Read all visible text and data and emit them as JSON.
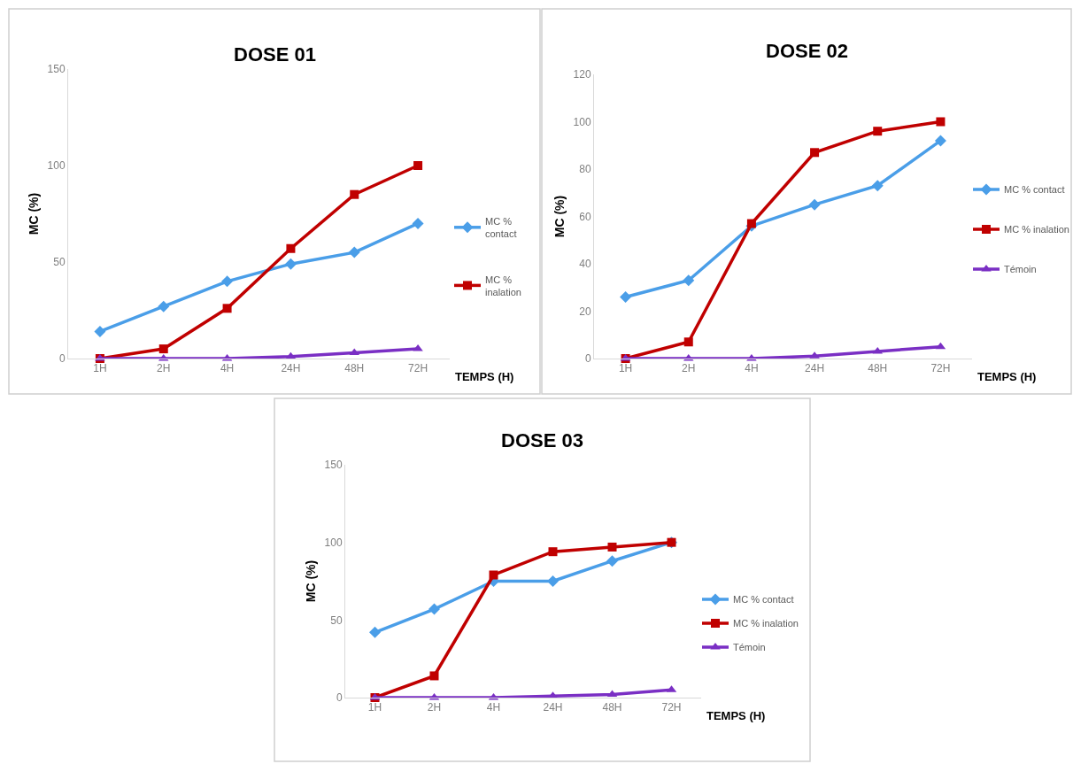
{
  "chart_data": [
    {
      "type": "line",
      "title": "DOSE 01",
      "xlabel": "TEMPS (H)",
      "ylabel": "MC (%)",
      "categories": [
        "1H",
        "2H",
        "4H",
        "24H",
        "48H",
        "72H"
      ],
      "series": [
        {
          "name": "MC % contact",
          "color": "#4a9ee8",
          "marker": "diamond",
          "values": [
            14,
            27,
            40,
            49,
            55,
            70
          ]
        },
        {
          "name": "MC % inalation",
          "color": "#c00000",
          "marker": "square",
          "values": [
            0,
            5,
            26,
            57,
            85,
            100
          ]
        },
        {
          "color": "#7a2fc4",
          "marker": "triangle",
          "values": [
            0,
            0,
            0,
            1,
            3,
            5
          ]
        }
      ],
      "ylim": [
        0,
        150
      ],
      "yticks": [
        0,
        50,
        100,
        150
      ],
      "legend": "right"
    },
    {
      "type": "line",
      "title": "DOSE 02",
      "xlabel": "TEMPS (H)",
      "ylabel": "MC (%)",
      "categories": [
        "1H",
        "2H",
        "4H",
        "24H",
        "48H",
        "72H"
      ],
      "series": [
        {
          "name": "MC % contact",
          "color": "#4a9ee8",
          "marker": "diamond",
          "values": [
            26,
            33,
            56,
            65,
            73,
            92
          ]
        },
        {
          "name": "MC % inalation",
          "color": "#c00000",
          "marker": "square",
          "values": [
            0,
            7,
            57,
            87,
            96,
            100
          ]
        },
        {
          "name": "Témoin",
          "color": "#7a2fc4",
          "marker": "triangle",
          "values": [
            0,
            0,
            0,
            1,
            3,
            5
          ]
        }
      ],
      "ylim": [
        0,
        120
      ],
      "yticks": [
        0,
        20,
        40,
        60,
        80,
        100,
        120
      ],
      "legend": "right"
    },
    {
      "type": "line",
      "title": "DOSE 03",
      "xlabel": "TEMPS (H)",
      "ylabel": "MC (%)",
      "categories": [
        "1H",
        "2H",
        "4H",
        "24H",
        "48H",
        "72H"
      ],
      "series": [
        {
          "name": "MC % contact",
          "color": "#4a9ee8",
          "marker": "diamond",
          "values": [
            42,
            57,
            75,
            75,
            88,
            100
          ]
        },
        {
          "name": "MC % inalation",
          "color": "#c00000",
          "marker": "square",
          "values": [
            0,
            14,
            79,
            94,
            97,
            100
          ]
        },
        {
          "name": "Témoin",
          "color": "#7a2fc4",
          "marker": "triangle",
          "values": [
            0,
            0,
            0,
            1,
            2,
            5
          ]
        }
      ],
      "ylim": [
        0,
        150
      ],
      "yticks": [
        0,
        50,
        100,
        150
      ],
      "legend": "right"
    }
  ]
}
